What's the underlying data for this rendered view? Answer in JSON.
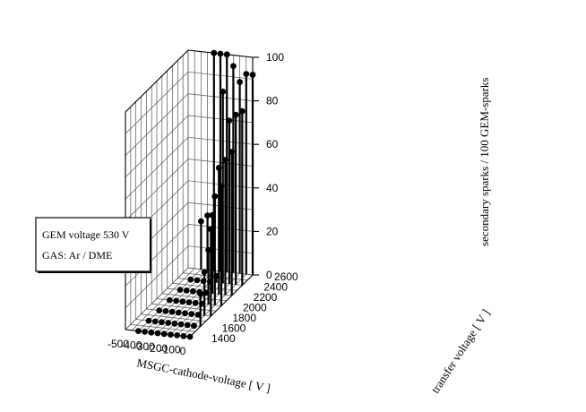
{
  "chart_data": {
    "type": "scatter",
    "subtype": "3d-stem",
    "xlabel": "MSGC-cathode-voltage [ V ]",
    "ylabel": "transfer voltage [ V ]",
    "zlabel": "secondary sparks / 100 GEM-sparks",
    "x_ticks": [
      "-500",
      "-400",
      "-300",
      "-200",
      "-100",
      "0"
    ],
    "y_ticks": [
      "1400",
      "1600",
      "1800",
      "2000",
      "2200",
      "2400",
      "2600"
    ],
    "z_ticks": [
      "0",
      "20",
      "40",
      "60",
      "80",
      "100"
    ],
    "xlim": [
      -500,
      0
    ],
    "ylim": [
      1400,
      2600
    ],
    "zlim": [
      0,
      100
    ],
    "grid": true,
    "legend_box": [
      "GEM voltage 530 V",
      "GAS: Ar / DME"
    ],
    "points": [
      {
        "x": -400,
        "y": 2400,
        "z": 0
      },
      {
        "x": -400,
        "y": 2200,
        "z": 0
      },
      {
        "x": -400,
        "y": 2000,
        "z": 0
      },
      {
        "x": -400,
        "y": 1800,
        "z": 0
      },
      {
        "x": -400,
        "y": 1600,
        "z": 0
      },
      {
        "x": -400,
        "y": 1400,
        "z": 0
      },
      {
        "x": -400,
        "y": 2600,
        "z": 22
      },
      {
        "x": -350,
        "y": 2400,
        "z": 0
      },
      {
        "x": -350,
        "y": 2200,
        "z": 0
      },
      {
        "x": -350,
        "y": 2000,
        "z": 0
      },
      {
        "x": -350,
        "y": 1800,
        "z": 0
      },
      {
        "x": -350,
        "y": 1600,
        "z": 0
      },
      {
        "x": -350,
        "y": 1400,
        "z": 0
      },
      {
        "x": -350,
        "y": 2600,
        "z": 25
      },
      {
        "x": -300,
        "y": 2400,
        "z": 0
      },
      {
        "x": -300,
        "y": 2200,
        "z": 0
      },
      {
        "x": -300,
        "y": 2000,
        "z": 0
      },
      {
        "x": -300,
        "y": 1800,
        "z": 0
      },
      {
        "x": -300,
        "y": 1600,
        "z": 0
      },
      {
        "x": -300,
        "y": 1400,
        "z": 0
      },
      {
        "x": -300,
        "y": 2600,
        "z": 100
      },
      {
        "x": -250,
        "y": 2400,
        "z": 0
      },
      {
        "x": -250,
        "y": 2200,
        "z": 0
      },
      {
        "x": -250,
        "y": 2000,
        "z": 0
      },
      {
        "x": -250,
        "y": 1800,
        "z": 0
      },
      {
        "x": -250,
        "y": 1600,
        "z": 0
      },
      {
        "x": -250,
        "y": 1400,
        "z": 0
      },
      {
        "x": -250,
        "y": 2600,
        "z": 100
      },
      {
        "x": -200,
        "y": 2600,
        "z": 100
      },
      {
        "x": -200,
        "y": 2400,
        "z": 3
      },
      {
        "x": -200,
        "y": 2200,
        "z": 0
      },
      {
        "x": -200,
        "y": 2000,
        "z": 0
      },
      {
        "x": -200,
        "y": 1800,
        "z": 0
      },
      {
        "x": -200,
        "y": 1600,
        "z": 0
      },
      {
        "x": -200,
        "y": 1400,
        "z": 0
      },
      {
        "x": -150,
        "y": 2600,
        "z": 95
      },
      {
        "x": -150,
        "y": 2400,
        "z": 88
      },
      {
        "x": -150,
        "y": 2200,
        "z": 36
      },
      {
        "x": -150,
        "y": 2000,
        "z": 0
      },
      {
        "x": -150,
        "y": 1800,
        "z": 0
      },
      {
        "x": -150,
        "y": 1600,
        "z": 0
      },
      {
        "x": -150,
        "y": 1400,
        "z": 0
      },
      {
        "x": -100,
        "y": 2600,
        "z": 88
      },
      {
        "x": -100,
        "y": 2400,
        "z": 75
      },
      {
        "x": -100,
        "y": 2200,
        "z": 58
      },
      {
        "x": -100,
        "y": 2000,
        "z": 25
      },
      {
        "x": -100,
        "y": 1800,
        "z": 0
      },
      {
        "x": -100,
        "y": 1600,
        "z": 0
      },
      {
        "x": -100,
        "y": 1400,
        "z": 0
      },
      {
        "x": -50,
        "y": 2600,
        "z": 92
      },
      {
        "x": -50,
        "y": 2400,
        "z": 78
      },
      {
        "x": -50,
        "y": 2200,
        "z": 62
      },
      {
        "x": -50,
        "y": 2000,
        "z": 50
      },
      {
        "x": -50,
        "y": 1800,
        "z": 20
      },
      {
        "x": -50,
        "y": 1600,
        "z": 0
      },
      {
        "x": -50,
        "y": 1400,
        "z": 0
      },
      {
        "x": 0,
        "y": 2600,
        "z": 92
      },
      {
        "x": 0,
        "y": 2400,
        "z": 80
      },
      {
        "x": 0,
        "y": 2200,
        "z": 66
      },
      {
        "x": 0,
        "y": 2000,
        "z": 55
      },
      {
        "x": 0,
        "y": 1800,
        "z": 40
      },
      {
        "x": 0,
        "y": 1600,
        "z": 15
      },
      {
        "x": 0,
        "y": 1400,
        "z": 0
      }
    ]
  }
}
